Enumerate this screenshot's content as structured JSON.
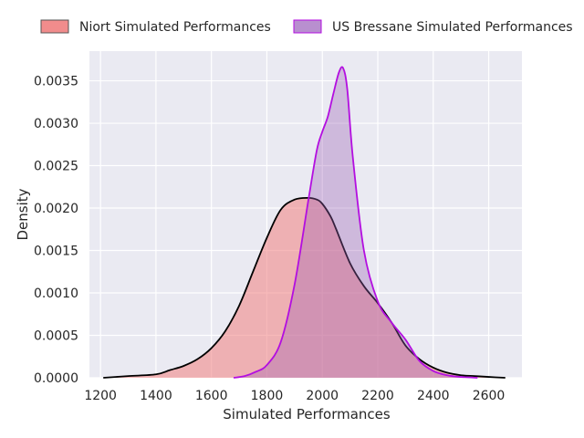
{
  "chart_data": {
    "type": "area",
    "xlabel": "Simulated Performances",
    "ylabel": "Density",
    "xlim": [
      1160,
      2720
    ],
    "ylim": [
      0,
      0.00385
    ],
    "xticks": [
      1200,
      1400,
      1600,
      1800,
      2000,
      2200,
      2400,
      2600
    ],
    "yticks": [
      0,
      0.0005,
      0.001,
      0.0015,
      0.002,
      0.0025,
      0.003,
      0.0035
    ],
    "xtick_labels": [
      "1200",
      "1400",
      "1600",
      "1800",
      "2000",
      "2200",
      "2400",
      "2600"
    ],
    "ytick_labels": [
      "0.0000",
      "0.0005",
      "0.0010",
      "0.0015",
      "0.0020",
      "0.0025",
      "0.0030",
      "0.0035"
    ],
    "grid": true,
    "legend_placement": "top",
    "background": "#eaeaf2",
    "series": [
      {
        "name": "Niort Simulated Performances",
        "fill": "#f08080",
        "line": "#000000",
        "x": [
          1210,
          1300,
          1400,
          1450,
          1500,
          1550,
          1600,
          1650,
          1700,
          1750,
          1800,
          1850,
          1900,
          1950,
          1980,
          2000,
          2030,
          2050,
          2100,
          2150,
          2200,
          2250,
          2300,
          2350,
          2400,
          2450,
          2500,
          2550,
          2600,
          2660
        ],
        "y": [
          0,
          2e-05,
          4e-05,
          9e-05,
          0.00014,
          0.00022,
          0.00035,
          0.00055,
          0.00085,
          0.00125,
          0.00165,
          0.00198,
          0.0021,
          0.00212,
          0.0021,
          0.00205,
          0.0019,
          0.00175,
          0.00135,
          0.00108,
          0.00088,
          0.00065,
          0.00038,
          0.00022,
          0.00012,
          6e-05,
          3e-05,
          2e-05,
          1e-05,
          0
        ]
      },
      {
        "name": "US Bressane Simulated Performances",
        "fill": "#9a5fb4",
        "line": "#b30ee0",
        "x": [
          1680,
          1720,
          1760,
          1800,
          1850,
          1900,
          1950,
          1980,
          2000,
          2020,
          2040,
          2060,
          2075,
          2090,
          2110,
          2150,
          2200,
          2250,
          2300,
          2350,
          2400,
          2450,
          2500,
          2560
        ],
        "y": [
          0,
          2e-05,
          7e-05,
          0.00015,
          0.00042,
          0.0011,
          0.0021,
          0.00268,
          0.0029,
          0.00308,
          0.00335,
          0.0036,
          0.00365,
          0.0034,
          0.0026,
          0.0015,
          0.0009,
          0.00065,
          0.00045,
          0.0002,
          8e-05,
          3e-05,
          1e-05,
          0
        ]
      }
    ]
  }
}
